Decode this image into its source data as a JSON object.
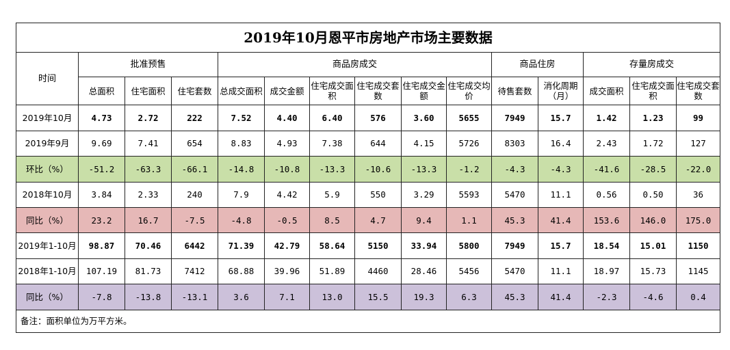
{
  "title": "2019年10月恩平市房地产市场主要数据",
  "header": {
    "time_label": "时间",
    "groups": [
      "批准预售",
      "商品房成交",
      "商品住房",
      "存量房成交"
    ],
    "subheaders": [
      "总面积",
      "住宅面积",
      "住宅套数",
      "总成交面积",
      "成交金额",
      "住宅成交面积",
      "住宅成交套数",
      "住宅成交金额",
      "住宅成交均价",
      "待售套数",
      "消化周期（月）",
      "成交面积",
      "住宅成交面积",
      "住宅成交套数"
    ]
  },
  "rows": [
    {
      "label": "2019年10月",
      "values": [
        "4.73",
        "2.72",
        "222",
        "7.52",
        "4.40",
        "6.40",
        "576",
        "3.60",
        "5655",
        "7949",
        "15.7",
        "1.42",
        "1.23",
        "99"
      ]
    },
    {
      "label": "2019年9月",
      "values": [
        "9.69",
        "7.41",
        "654",
        "8.83",
        "4.93",
        "7.38",
        "644",
        "4.15",
        "5726",
        "8303",
        "16.4",
        "2.43",
        "1.72",
        "127"
      ]
    },
    {
      "label": "环比（%）",
      "values": [
        "-51.2",
        "-63.3",
        "-66.1",
        "-14.8",
        "-10.8",
        "-13.3",
        "-10.6",
        "-13.3",
        "-1.2",
        "-4.3",
        "-4.3",
        "-41.6",
        "-28.5",
        "-22.0"
      ]
    },
    {
      "label": "2018年10月",
      "values": [
        "3.84",
        "2.33",
        "240",
        "7.9",
        "4.42",
        "5.9",
        "550",
        "3.29",
        "5593",
        "5470",
        "11.1",
        "0.56",
        "0.50",
        "36"
      ]
    },
    {
      "label": "同比（%）",
      "values": [
        "23.2",
        "16.7",
        "-7.5",
        "-4.8",
        "-0.5",
        "8.5",
        "4.7",
        "9.4",
        "1.1",
        "45.3",
        "41.4",
        "153.6",
        "146.0",
        "175.0"
      ]
    },
    {
      "label": "2019年1-10月",
      "values": [
        "98.87",
        "70.46",
        "6442",
        "71.39",
        "42.79",
        "58.64",
        "5150",
        "33.94",
        "5800",
        "7949",
        "15.7",
        "18.54",
        "15.01",
        "1150"
      ]
    },
    {
      "label": "2018年1-10月",
      "values": [
        "107.19",
        "81.73",
        "7412",
        "68.88",
        "39.96",
        "51.89",
        "4460",
        "28.46",
        "5456",
        "5470",
        "11.1",
        "18.97",
        "15.73",
        "1145"
      ]
    },
    {
      "label": "同比（%）",
      "values": [
        "-7.8",
        "-13.8",
        "-13.1",
        "3.6",
        "7.1",
        "13.0",
        "15.5",
        "19.3",
        "6.3",
        "45.3",
        "41.4",
        "-2.3",
        "-4.6",
        "0.4"
      ]
    }
  ],
  "row_colors": {
    "green": "#c9dfa8",
    "pink": "#e6b8b7",
    "purple": "#ccc1da"
  },
  "note": "备注：面积单位为万平方米。"
}
